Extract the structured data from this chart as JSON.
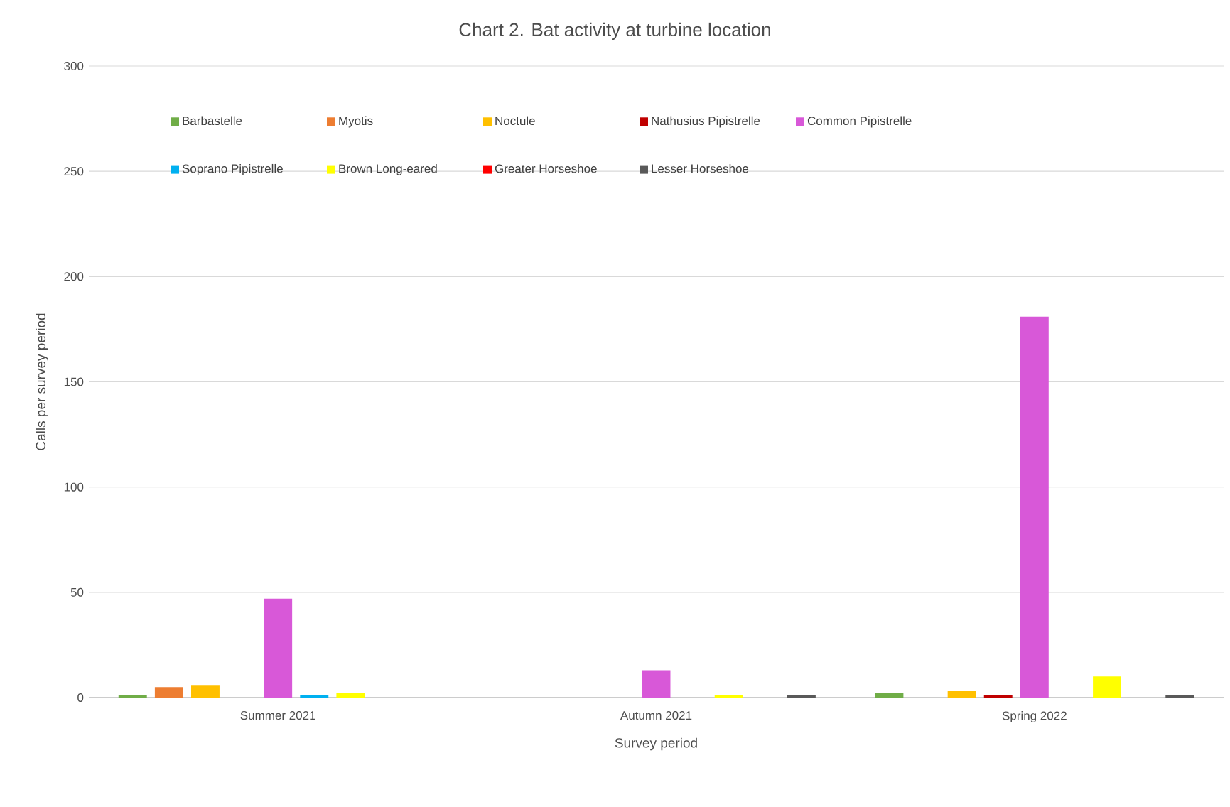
{
  "chart_data": {
    "type": "bar",
    "title": "Chart 2. Bat activity at turbine location",
    "xlabel": "Survey period",
    "ylabel": "Calls per survey period",
    "categories": [
      "Summer 2021",
      "Autumn 2021",
      "Spring 2022"
    ],
    "series": [
      {
        "name": "Barbastelle",
        "color": "#70ad47",
        "values": [
          1,
          0,
          2
        ]
      },
      {
        "name": "Myotis",
        "color": "#ed7d31",
        "values": [
          5,
          0,
          0
        ]
      },
      {
        "name": "Noctule",
        "color": "#ffc000",
        "values": [
          6,
          0,
          3
        ]
      },
      {
        "name": "Nathusius Pipistrelle",
        "color": "#c00000",
        "values": [
          0,
          0,
          1
        ]
      },
      {
        "name": "Common Pipistrelle",
        "color": "#d858d8",
        "values": [
          47,
          13,
          181
        ]
      },
      {
        "name": "Soprano Pipistrelle",
        "color": "#00b0f0",
        "values": [
          1,
          0,
          0
        ]
      },
      {
        "name": "Brown Long-eared",
        "color": "#ffff00",
        "values": [
          2,
          1,
          10
        ]
      },
      {
        "name": "Greater Horseshoe",
        "color": "#ff0000",
        "values": [
          0,
          0,
          0
        ]
      },
      {
        "name": "Lesser Horseshoe",
        "color": "#595959",
        "values": [
          0,
          1,
          1
        ]
      }
    ],
    "ylim": [
      0,
      300
    ],
    "yticks": [
      0,
      50,
      100,
      150,
      200,
      250,
      300
    ],
    "grid": "y",
    "legend": "top left"
  }
}
